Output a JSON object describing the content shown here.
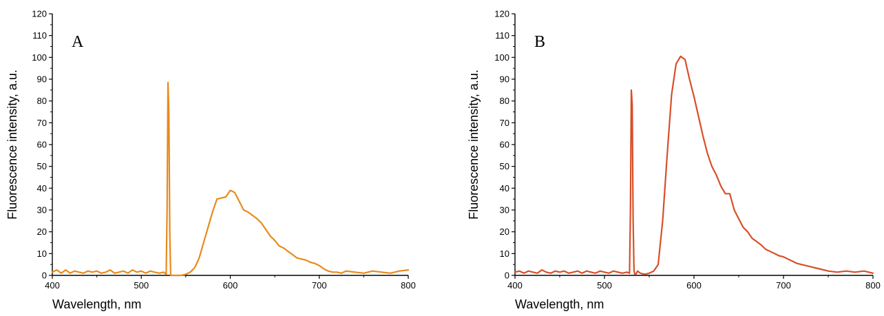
{
  "chart_data": [
    {
      "type": "line",
      "panel_label": "A",
      "xlabel": "Wavelength, nm",
      "ylabel": "Fluorescence intensity, a.u.",
      "xlim": [
        400,
        800
      ],
      "ylim": [
        0,
        120
      ],
      "x_ticks": [
        400,
        500,
        600,
        700,
        800
      ],
      "y_ticks": [
        0,
        10,
        20,
        30,
        40,
        50,
        60,
        70,
        80,
        90,
        100,
        110,
        120
      ],
      "grid": false,
      "color": "#e8891a",
      "series": [
        {
          "x": [
            400,
            405,
            410,
            415,
            420,
            425,
            430,
            435,
            440,
            445,
            450,
            455,
            460,
            465,
            470,
            475,
            480,
            485,
            490,
            495,
            500,
            505,
            510,
            515,
            520,
            525,
            528,
            529,
            530,
            531,
            532,
            533,
            534,
            535,
            536,
            537,
            538,
            545,
            550,
            555,
            560,
            565,
            570,
            575,
            580,
            585,
            590,
            595,
            600,
            605,
            610,
            615,
            620,
            625,
            630,
            635,
            640,
            645,
            650,
            655,
            660,
            665,
            670,
            675,
            680,
            685,
            690,
            695,
            700,
            705,
            710,
            715,
            720,
            725,
            730,
            740,
            750,
            760,
            770,
            780,
            790,
            800
          ],
          "y": [
            1.5,
            2.5,
            1,
            2.5,
            1,
            2,
            1.5,
            1,
            2,
            1.5,
            2,
            1,
            1.5,
            2.5,
            1,
            1.5,
            2,
            1,
            2.5,
            1.5,
            2,
            1,
            2,
            1.5,
            1,
            1.5,
            0.5,
            30,
            88.5,
            74,
            20,
            0,
            0,
            0,
            0,
            0,
            0,
            0,
            0.5,
            1.5,
            3.5,
            8,
            15,
            22,
            29,
            35,
            35.5,
            36,
            39,
            38,
            34,
            30,
            29,
            27.5,
            26,
            24,
            21,
            18,
            16,
            13.5,
            12.5,
            11,
            9.5,
            8,
            7.5,
            7,
            6,
            5.5,
            4.5,
            3,
            2,
            1.5,
            1.5,
            1,
            2,
            1.5,
            1,
            2,
            1.5,
            1,
            2,
            2.5
          ]
        }
      ]
    },
    {
      "type": "line",
      "panel_label": "B",
      "xlabel": "Wavelength, nm",
      "ylabel": "Fluorescence intensity, a.u.",
      "xlim": [
        400,
        800
      ],
      "ylim": [
        0,
        120
      ],
      "x_ticks": [
        400,
        500,
        600,
        700,
        800
      ],
      "y_ticks": [
        0,
        10,
        20,
        30,
        40,
        50,
        60,
        70,
        80,
        90,
        100,
        110,
        120
      ],
      "grid": false,
      "color": "#d84e28",
      "series": [
        {
          "x": [
            400,
            405,
            410,
            415,
            420,
            425,
            430,
            435,
            440,
            445,
            450,
            455,
            460,
            465,
            470,
            475,
            480,
            485,
            490,
            495,
            500,
            505,
            510,
            515,
            520,
            525,
            528,
            529,
            530,
            531,
            532,
            533,
            534,
            535,
            537,
            540,
            545,
            550,
            555,
            560,
            565,
            570,
            575,
            580,
            585,
            590,
            595,
            600,
            605,
            610,
            615,
            620,
            625,
            630,
            635,
            640,
            645,
            650,
            655,
            660,
            665,
            670,
            675,
            680,
            685,
            690,
            695,
            700,
            705,
            710,
            715,
            720,
            730,
            740,
            750,
            760,
            770,
            780,
            790,
            800
          ],
          "y": [
            1.5,
            2,
            1,
            2,
            1.5,
            1,
            2.5,
            1.5,
            1,
            2,
            1.5,
            2,
            1,
            1.5,
            2,
            1,
            2,
            1.5,
            1,
            2,
            1.5,
            1,
            2,
            1.5,
            1,
            1.5,
            1,
            30,
            85,
            78,
            25,
            2,
            0.5,
            0.5,
            2,
            1,
            0.5,
            1,
            2,
            5,
            25,
            55,
            83,
            97,
            100.5,
            99,
            90,
            82,
            73,
            64,
            56,
            50,
            46,
            41,
            37.5,
            37.5,
            30,
            26,
            22,
            20,
            17,
            15.5,
            14,
            12,
            11,
            10,
            9,
            8.5,
            7.5,
            6.5,
            5.5,
            5,
            4,
            3,
            2,
            1.5,
            2,
            1.5,
            2,
            1
          ]
        }
      ]
    }
  ]
}
